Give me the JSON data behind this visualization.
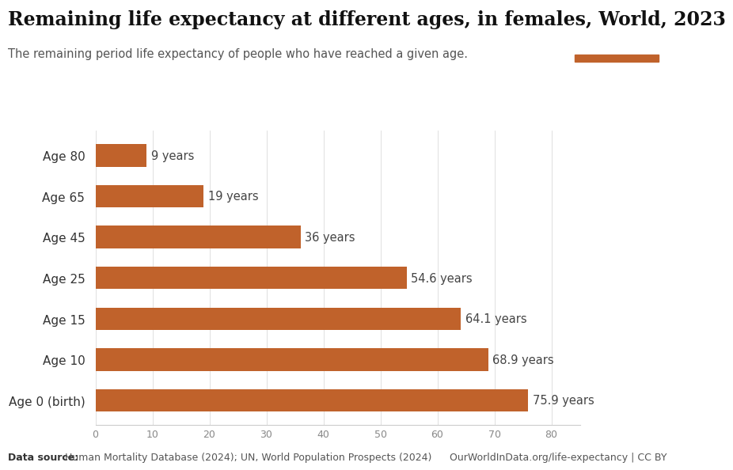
{
  "title": "Remaining life expectancy at different ages, in females, World, 2023",
  "subtitle": "The remaining period life expectancy of people who have reached a given age.",
  "categories": [
    "Age 80",
    "Age 65",
    "Age 45",
    "Age 25",
    "Age 15",
    "Age 10",
    "Age 0 (birth)"
  ],
  "values": [
    9,
    19,
    36,
    54.6,
    64.1,
    68.9,
    75.9
  ],
  "labels": [
    "9 years",
    "19 years",
    "36 years",
    "54.6 years",
    "64.1 years",
    "68.9 years",
    "75.9 years"
  ],
  "bar_color": "#C0622B",
  "background_color": "#FFFFFF",
  "datasource_text": "Data source: Human Mortality Database (2024); UN, World Population Prospects (2024)",
  "url_text": "OurWorldInData.org/life-expectancy | CC BY",
  "owid_box_color": "#1a2e4a",
  "owid_red": "#C0622B",
  "xlim": [
    0,
    85
  ],
  "title_fontsize": 17,
  "subtitle_fontsize": 10.5,
  "label_fontsize": 10.5,
  "axis_label_fontsize": 11,
  "footer_fontsize": 9
}
